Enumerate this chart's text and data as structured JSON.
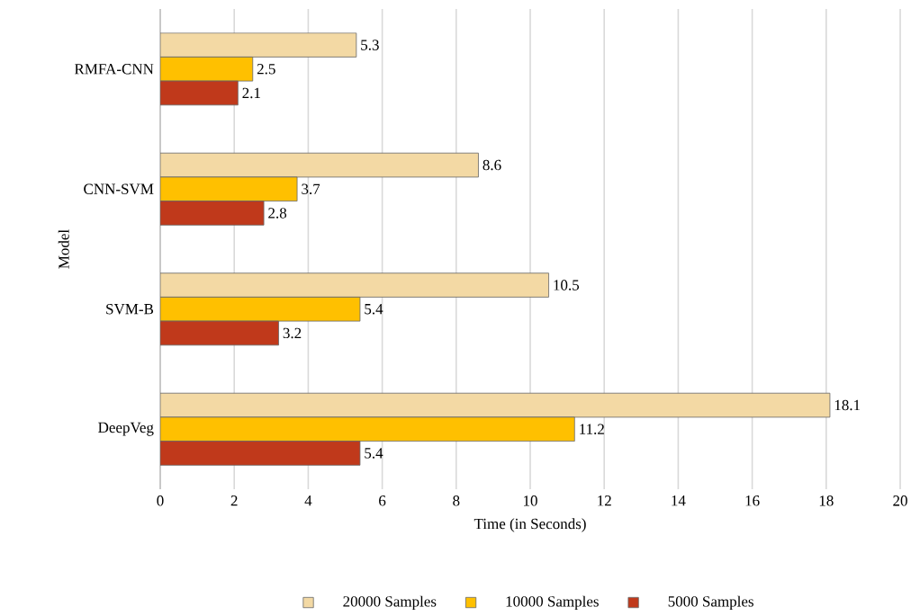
{
  "chart_data": {
    "type": "bar",
    "orientation": "horizontal",
    "xlabel": "Time (in Seconds)",
    "ylabel": "Model",
    "categories": [
      "RMFA-CNN",
      "CNN-SVM",
      "SVM-B",
      "DeepVeg"
    ],
    "series": [
      {
        "name": "20000 Samples",
        "color": "#f3d9a4",
        "values": [
          5.3,
          8.6,
          10.5,
          18.1
        ]
      },
      {
        "name": "10000 Samples",
        "color": "#ffc000",
        "values": [
          2.5,
          3.7,
          5.4,
          11.2
        ]
      },
      {
        "name": "5000 Samples",
        "color": "#c0391b",
        "values": [
          2.1,
          2.8,
          3.2,
          5.4
        ]
      }
    ],
    "xlim": [
      0,
      20
    ],
    "xticks": [
      0,
      2,
      4,
      6,
      8,
      10,
      12,
      14,
      16,
      18,
      20
    ],
    "grid": "x",
    "legend": "bottom",
    "data_labels": true
  }
}
